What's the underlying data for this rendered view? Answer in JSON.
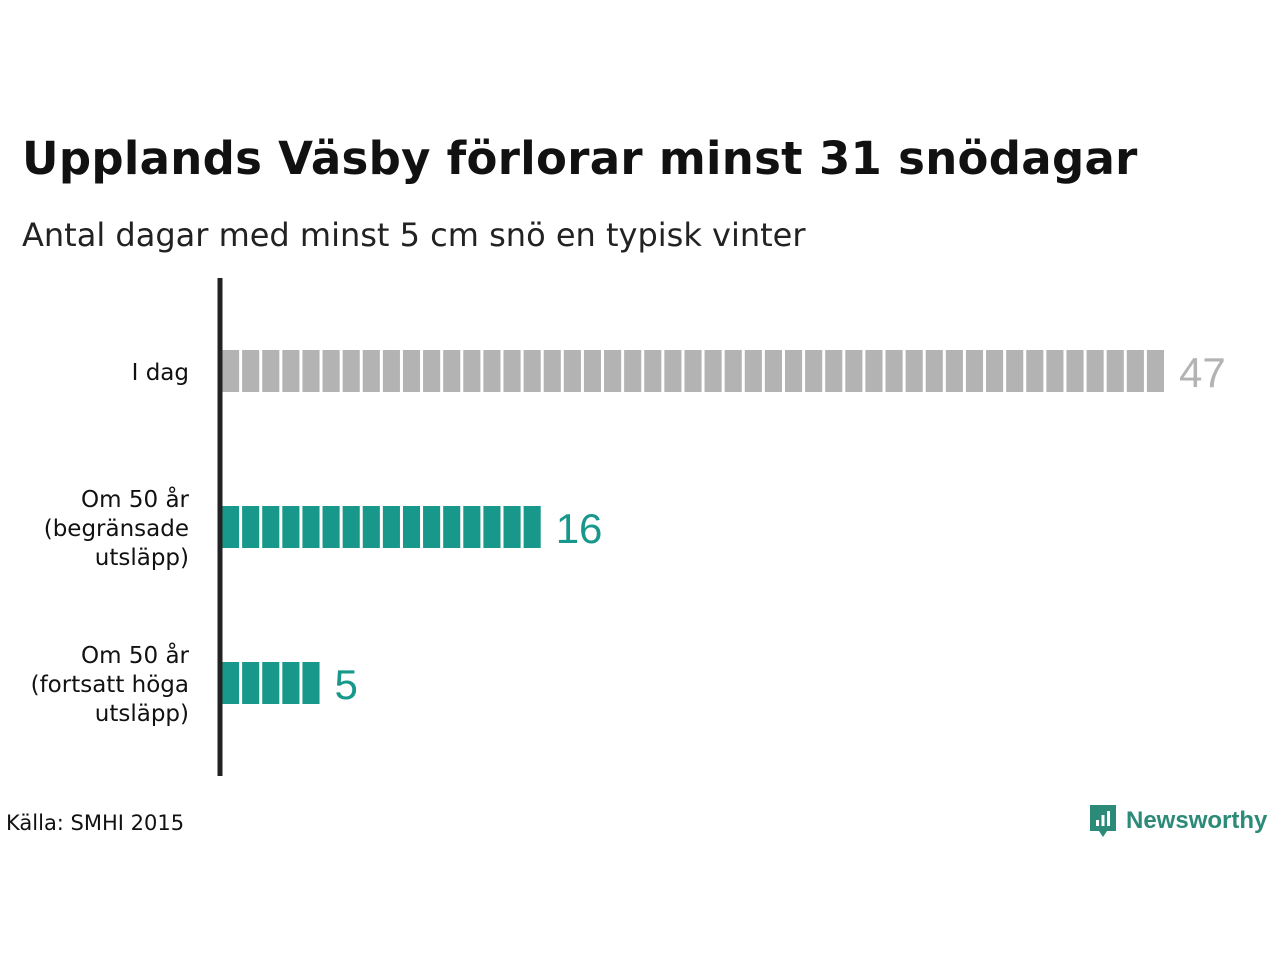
{
  "title": "Upplands Väsby förlorar minst 31 snödagar",
  "subtitle": "Antal dagar med minst 5 cm snö en typisk vinter",
  "source": "Källa: SMHI 2015",
  "brand": {
    "name": "Newsworthy",
    "icon": "newsworthy-logo-icon",
    "color": "#2b8a78"
  },
  "chart_data": {
    "type": "bar",
    "orientation": "horizontal",
    "title": "Upplands Väsby förlorar minst 31 snödagar",
    "subtitle": "Antal dagar med minst 5 cm snö en typisk vinter",
    "categories": [
      [
        "I dag"
      ],
      [
        "Om 50 år",
        "(begränsade",
        "utsläpp)"
      ],
      [
        "Om 50 år",
        "(fortsatt höga",
        "utsläpp)"
      ]
    ],
    "values": [
      47,
      16,
      5
    ],
    "value_labels": [
      "47",
      "16",
      "5"
    ],
    "colors": [
      "#b3b3b3",
      "#17988a",
      "#17988a"
    ],
    "segmented": true,
    "segment_unit": 1,
    "xlim": [
      0,
      47
    ],
    "grid": false,
    "legend": "none"
  }
}
